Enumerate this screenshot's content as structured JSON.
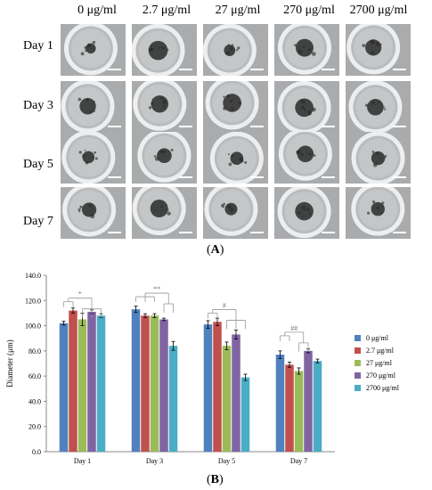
{
  "panel_a": {
    "label": "A",
    "concentrations": [
      "0 μg/ml",
      "2.7 μg/ml",
      "27 μg/ml",
      "270 μg/ml",
      "2700 μg/ml"
    ],
    "days": [
      "Day 1",
      "Day 3",
      "Day 5",
      "Day 7"
    ]
  },
  "panel_b": {
    "label": "B"
  },
  "chart_data": {
    "type": "bar",
    "ylabel": "Diameter (μm)",
    "ylim": [
      0,
      140
    ],
    "yticks": [
      "0.0",
      "20.0",
      "40.0",
      "60.0",
      "80.0",
      "100.0",
      "120.0",
      "140.0"
    ],
    "categories": [
      "Day 1",
      "Day 3",
      "Day 5",
      "Day 7"
    ],
    "series": [
      {
        "name": "0 μg/ml",
        "color": "#4f81bd",
        "values": [
          102,
          113,
          101,
          77
        ],
        "errors": [
          1.5,
          2.5,
          3,
          3
        ]
      },
      {
        "name": "2.7 μg/ml",
        "color": "#c0504d",
        "values": [
          112,
          108,
          103,
          69
        ],
        "errors": [
          2,
          1.5,
          3,
          2
        ]
      },
      {
        "name": "27 μg/ml",
        "color": "#9bbb59",
        "values": [
          105,
          108,
          84,
          64
        ],
        "errors": [
          5,
          1.5,
          3,
          2.5
        ]
      },
      {
        "name": "270 μg/ml",
        "color": "#8064a2",
        "values": [
          111,
          105,
          93,
          80
        ],
        "errors": [
          1.5,
          1,
          3.5,
          1.5
        ]
      },
      {
        "name": "2700 μg/ml",
        "color": "#4bacc6",
        "values": [
          108,
          84,
          59,
          72
        ],
        "errors": [
          1.5,
          3.5,
          2.5,
          1.5
        ]
      }
    ],
    "annotations": [
      "*",
      "**",
      "#",
      "##"
    ],
    "legend_position": "right",
    "grid": false
  }
}
